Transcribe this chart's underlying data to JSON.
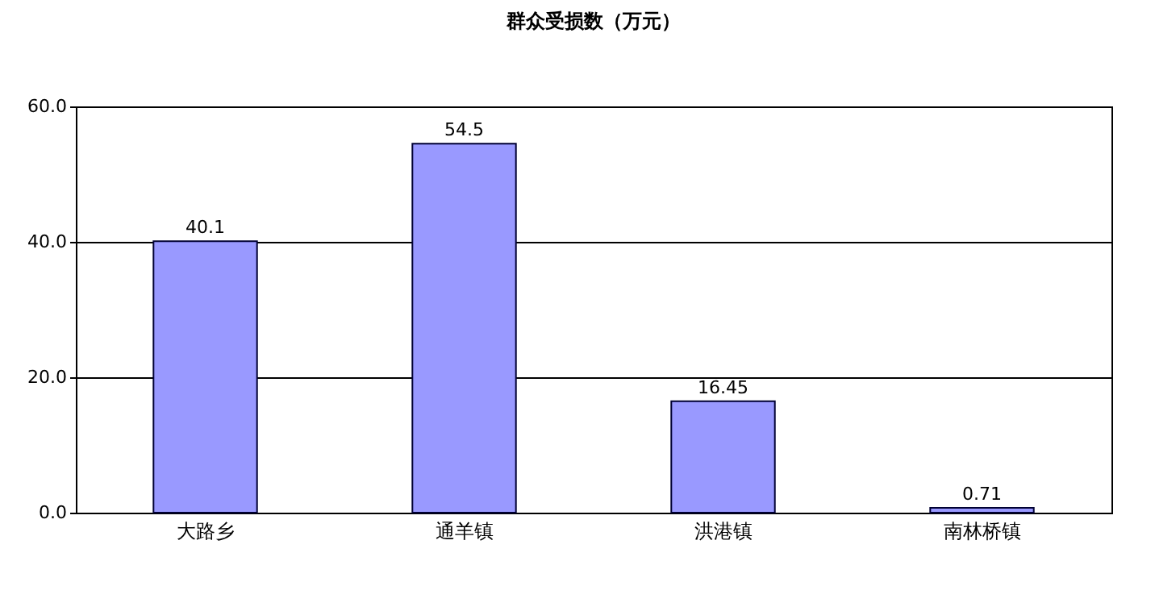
{
  "chart_data": {
    "type": "bar",
    "title": "群众受损数（万元）",
    "categories": [
      "大路乡",
      "通羊镇",
      "洪港镇",
      "南林桥镇"
    ],
    "values": [
      40.1,
      54.5,
      16.45,
      0.71
    ],
    "color": "#9999ff",
    "ylim": [
      0,
      60
    ],
    "yticks": [
      {
        "value": 0,
        "label": "0.0"
      },
      {
        "value": 20,
        "label": "20.0"
      },
      {
        "value": 40,
        "label": "40.0"
      },
      {
        "value": 60,
        "label": "60.0"
      }
    ],
    "grid": "y",
    "data_labels": true
  }
}
